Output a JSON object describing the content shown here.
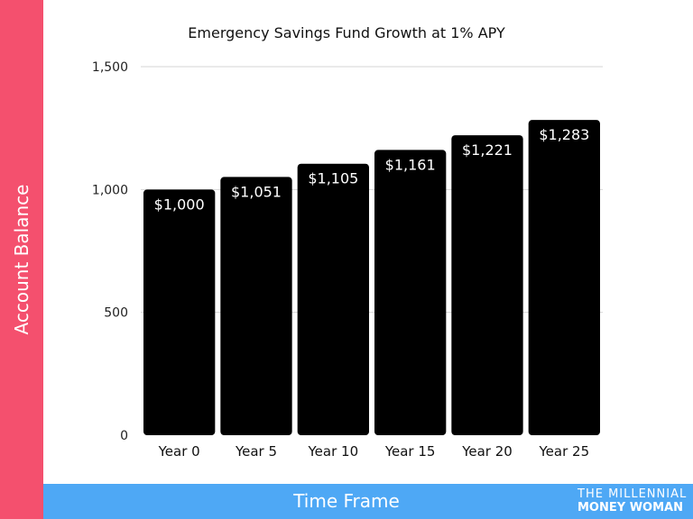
{
  "chart_data": {
    "type": "bar",
    "title": "Emergency Savings Fund Growth at 1% APY",
    "xlabel": "Time Frame",
    "ylabel": "Account Balance",
    "categories": [
      "Year 0",
      "Year 5",
      "Year 10",
      "Year 15",
      "Year 20",
      "Year 25"
    ],
    "values": [
      1000,
      1051,
      1105,
      1161,
      1221,
      1283
    ],
    "data_labels": [
      "$1,000",
      "$1,051",
      "$1,105",
      "$1,161",
      "$1,221",
      "$1,283"
    ],
    "ylim": [
      0,
      1500
    ],
    "yticks": [
      0,
      500,
      1000,
      1500
    ],
    "ytick_labels": [
      "0",
      "500",
      "1,000",
      "1,500"
    ],
    "grid": true,
    "bar_color": "#000000"
  },
  "branding": {
    "line1": "THE MILLENNIAL",
    "line2": "MONEY WOMAN"
  },
  "colors": {
    "left_band": "#f4506e",
    "bottom_band": "#4ea8f5"
  }
}
